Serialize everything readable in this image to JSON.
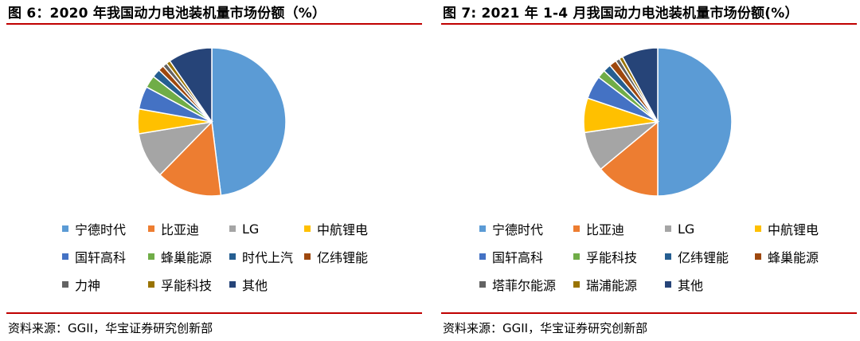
{
  "figures": [
    {
      "title": "图 6：2020 年我国动力电池装机量市场份额（%）",
      "source": "资料来源：GGII，华宝证券研究创新部"
    },
    {
      "title": "图 7: 2021 年 1-4 月我国动力电池装机量市场份额(%）",
      "source": "资料来源：GGII，华宝证券研究创新部"
    }
  ],
  "colors": {
    "宁德时代": "#5b9bd5",
    "比亚迪": "#ed7d31",
    "LG": "#a5a5a5",
    "中航锂电": "#ffc000",
    "国轩高科": "#4472c4",
    "蜂巢能源": "#70ad47",
    "时代上汽": "#255e91",
    "亿纬锂能": "#9e480e",
    "力神": "#636363",
    "孚能科技": "#997300",
    "其他": "#264478",
    "塔菲尔能源": "#636363",
    "瑞浦能源": "#997300",
    "亿纬锂能_r": "#255e91",
    "蜂巢能源_r": "#9e480e",
    "孚能科技_r": "#70ad47"
  },
  "chart_data": [
    {
      "type": "pie",
      "slices": [
        {
          "label": "宁德时代",
          "value": 50.0,
          "color": "#5b9bd5"
        },
        {
          "label": "比亚迪",
          "value": 14.9,
          "color": "#ed7d31"
        },
        {
          "label": "LG",
          "value": 10.5,
          "color": "#a5a5a5"
        },
        {
          "label": "中航锂电",
          "value": 5.6,
          "color": "#ffc000"
        },
        {
          "label": "国轩高科",
          "value": 5.2,
          "color": "#4472c4"
        },
        {
          "label": "蜂巢能源",
          "value": 2.8,
          "color": "#70ad47"
        },
        {
          "label": "时代上汽",
          "value": 1.9,
          "color": "#255e91"
        },
        {
          "label": "亿纬锂能",
          "value": 1.3,
          "color": "#9e480e"
        },
        {
          "label": "力神",
          "value": 1.0,
          "color": "#636363"
        },
        {
          "label": "孚能科技",
          "value": 0.9,
          "color": "#997300"
        },
        {
          "label": "其他",
          "value": 10.0,
          "color": "#264478"
        }
      ],
      "legend_position": "bottom"
    },
    {
      "type": "pie",
      "slices": [
        {
          "label": "宁德时代",
          "value": 50.0,
          "color": "#5b9bd5"
        },
        {
          "label": "比亚迪",
          "value": 14.0,
          "color": "#ed7d31"
        },
        {
          "label": "LG",
          "value": 8.7,
          "color": "#a5a5a5"
        },
        {
          "label": "中航锂电",
          "value": 7.5,
          "color": "#ffc000"
        },
        {
          "label": "国轩高科",
          "value": 5.1,
          "color": "#4472c4"
        },
        {
          "label": "孚能科技",
          "value": 1.8,
          "color": "#70ad47"
        },
        {
          "label": "亿纬锂能",
          "value": 1.7,
          "color": "#255e91"
        },
        {
          "label": "蜂巢能源",
          "value": 1.6,
          "color": "#9e480e"
        },
        {
          "label": "塔菲尔能源",
          "value": 0.9,
          "color": "#636363"
        },
        {
          "label": "瑞浦能源",
          "value": 0.8,
          "color": "#997300"
        },
        {
          "label": "其他",
          "value": 7.9,
          "color": "#264478"
        }
      ],
      "legend_position": "bottom"
    }
  ]
}
